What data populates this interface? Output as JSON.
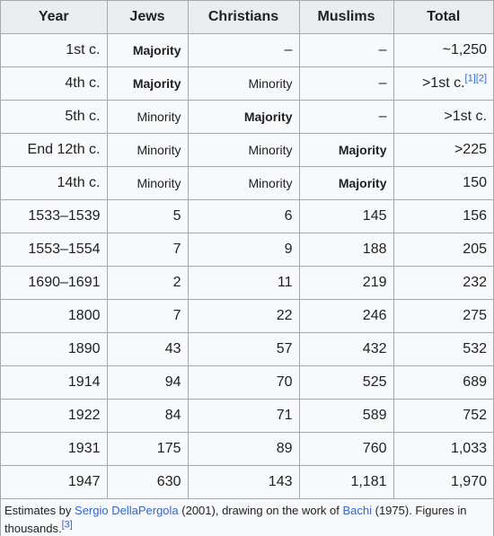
{
  "table": {
    "headers": [
      "Year",
      "Jews",
      "Christians",
      "Muslims",
      "Total"
    ],
    "rows": [
      [
        "1st c.",
        {
          "text": "Majority",
          "small": true,
          "bold": true
        },
        "–",
        "–",
        "~1,250"
      ],
      [
        "4th c.",
        {
          "text": "Majority",
          "small": true,
          "bold": true
        },
        {
          "text": "Minority",
          "small": true
        },
        "–",
        {
          "text": ">1st c.",
          "refs": [
            "[1]",
            "[2]"
          ]
        }
      ],
      [
        "5th c.",
        {
          "text": "Minority",
          "small": true
        },
        {
          "text": "Majority",
          "small": true,
          "bold": true
        },
        "–",
        ">1st c."
      ],
      [
        "End 12th c.",
        {
          "text": "Minority",
          "small": true
        },
        {
          "text": "Minority",
          "small": true
        },
        {
          "text": "Majority",
          "small": true,
          "bold": true
        },
        ">225"
      ],
      [
        "14th c.",
        {
          "text": "Minority",
          "small": true
        },
        {
          "text": "Minority",
          "small": true
        },
        {
          "text": "Majority",
          "small": true,
          "bold": true
        },
        "150"
      ],
      [
        "1533–1539",
        "5",
        "6",
        "145",
        "156"
      ],
      [
        "1553–1554",
        "7",
        "9",
        "188",
        "205"
      ],
      [
        "1690–1691",
        "2",
        "11",
        "219",
        "232"
      ],
      [
        "1800",
        "7",
        "22",
        "246",
        "275"
      ],
      [
        "1890",
        "43",
        "57",
        "432",
        "532"
      ],
      [
        "1914",
        "94",
        "70",
        "525",
        "689"
      ],
      [
        "1922",
        "84",
        "71",
        "589",
        "752"
      ],
      [
        "1931",
        "175",
        "89",
        "760",
        "1,033"
      ],
      [
        "1947",
        "630",
        "143",
        "1,181",
        "1,970"
      ]
    ]
  },
  "caption": [
    {
      "text": "Estimates by "
    },
    {
      "text": "Sergio DellaPergola",
      "link": true
    },
    {
      "text": " (2001), drawing on the work of "
    },
    {
      "text": "Bachi",
      "link": true
    },
    {
      "text": " (1975). Figures in thousands."
    },
    {
      "text": "[3]",
      "link": true,
      "sup": true
    }
  ]
}
